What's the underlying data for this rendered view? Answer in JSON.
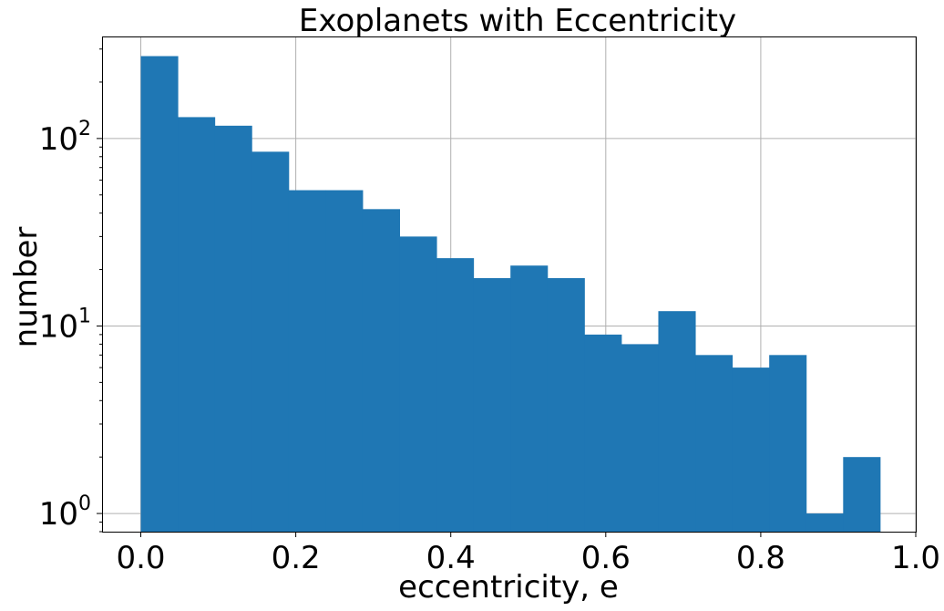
{
  "chart_data": {
    "type": "bar",
    "title": "Exoplanets with Eccentricity",
    "xlabel": "eccentricity, e",
    "ylabel": "number",
    "yscale": "log",
    "grid": true,
    "xlim": [
      -0.05,
      1.0
    ],
    "ylim": [
      0.8,
      350
    ],
    "x_ticks": [
      "0.0",
      "0.2",
      "0.4",
      "0.6",
      "0.8",
      "1.0"
    ],
    "y_ticks": [
      {
        "base": "10",
        "exp": "0"
      },
      {
        "base": "10",
        "exp": "1"
      },
      {
        "base": "10",
        "exp": "2"
      }
    ],
    "bin_edges": [
      0.0,
      0.0477,
      0.0954,
      0.1431,
      0.1908,
      0.2385,
      0.2862,
      0.3339,
      0.3816,
      0.4293,
      0.477,
      0.5247,
      0.5724,
      0.6201,
      0.6678,
      0.7155,
      0.7632,
      0.8109,
      0.8586,
      0.9063,
      0.954
    ],
    "values": [
      275,
      130,
      117,
      85,
      53,
      53,
      42,
      30,
      23,
      18,
      21,
      18,
      9,
      8,
      12,
      7,
      6,
      7,
      1,
      2
    ],
    "colors": {
      "bar": "#1f77b4",
      "grid": "#b0b0b0"
    }
  }
}
